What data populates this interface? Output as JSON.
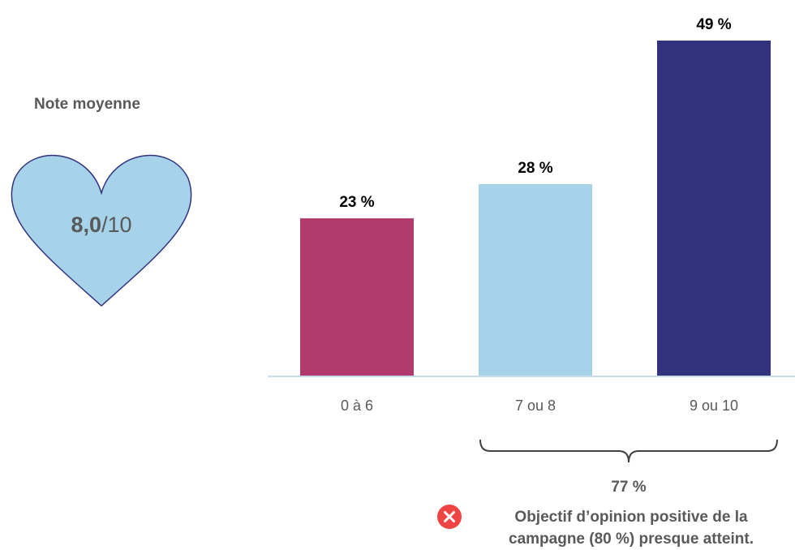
{
  "note": {
    "title": "Note moyenne",
    "score": "8,0",
    "out_of": "/10",
    "heart_color": "#a6d3ea"
  },
  "chart_data": {
    "type": "bar",
    "categories": [
      "0 à 6",
      "7 ou 8",
      "9 ou 10"
    ],
    "values": [
      23,
      28,
      49
    ],
    "data_labels": [
      "23 %",
      "28 %",
      "49 %"
    ],
    "colors": [
      "#b03a6b",
      "#a6d3ea",
      "#32337e"
    ],
    "ylim": [
      0,
      49
    ],
    "grid": false,
    "legend": "none"
  },
  "summary": {
    "value": "77 %",
    "status_icon": "close-icon",
    "status_color": "#ee4444",
    "text_line1": "Objectif d’opinion positive de la",
    "text_line2": "campagne (80 %) presque atteint."
  }
}
